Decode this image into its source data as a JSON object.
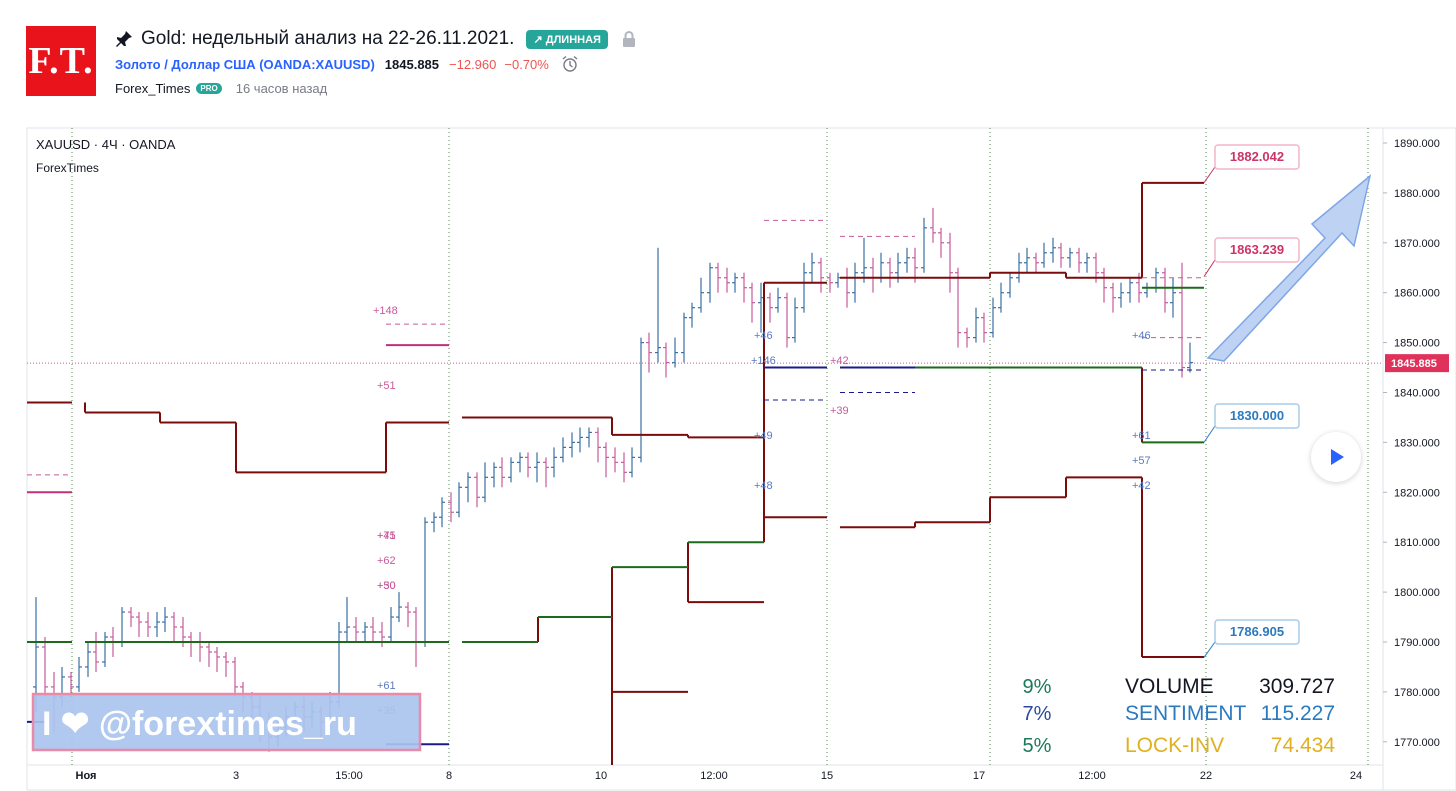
{
  "header": {
    "title": "Gold: недельный анализ на 22-26.11.2021.",
    "badge": "↗ ДЛИННАЯ",
    "symbol_name": "Золото / Доллар США (OANDA:XAUUSD)",
    "price": "1845.885",
    "change": "−12.960",
    "change_percent": "−0.70%",
    "author": "Forex_Times",
    "author_badge": "PRO",
    "time_ago": "16 часов назад",
    "logo_text": "F.T."
  },
  "colors": {
    "bull": "#3a6fa4",
    "bear": "#c85a9a",
    "level": "#7a0c0c",
    "green": "#1b6b1b",
    "accent": "#2962ff",
    "badge": "#26a69a"
  },
  "chart_data": {
    "type": "candlestick",
    "symbol": "XAUUSD · 4Ч · OANDA",
    "indicator": "ForexTimes",
    "current_price": 1845.885,
    "y_axis": {
      "min": 1765,
      "max": 1893,
      "ticks": [
        1890,
        1880,
        1870,
        1860,
        1850,
        1840,
        1830,
        1820,
        1810,
        1800,
        1790,
        1780,
        1770
      ]
    },
    "x_labels": [
      "Ноя",
      "3",
      "15:00",
      "8",
      "10",
      "12:00",
      "15",
      "17",
      "12:00",
      "22",
      "24"
    ],
    "levels": [
      {
        "label": "1882.042",
        "value": 1882.042,
        "color": "#cc3366"
      },
      {
        "label": "1863.239",
        "value": 1863.239,
        "color": "#cc3366"
      },
      {
        "label": "1830.000",
        "value": 1830.0,
        "color": "#2a7ac0"
      },
      {
        "label": "1786.905",
        "value": 1786.905,
        "color": "#2a7ac0"
      }
    ],
    "annotations": [
      "+148",
      "+51",
      "+45",
      "+71",
      "+62",
      "+50",
      "+30",
      "+61",
      "+35",
      "+46",
      "+146",
      "+42",
      "+39",
      "+49",
      "+48",
      "+46",
      "+61",
      "+57",
      "+42"
    ],
    "stats": [
      {
        "percent": "9%",
        "name": "VOLUME",
        "value": "309.727",
        "color": "#131722",
        "pcolor": "#1b7a5a"
      },
      {
        "percent": "7%",
        "name": "SENTIMENT",
        "value": "115.227",
        "color": "#2a7ac0",
        "pcolor": "#2a4aa0"
      },
      {
        "percent": "5%",
        "name": "LOCK-INV",
        "value": "74.434",
        "color": "#e0b020",
        "pcolor": "#1b7a5a"
      }
    ],
    "watermark": "I ❤ @forextimes_ru"
  }
}
